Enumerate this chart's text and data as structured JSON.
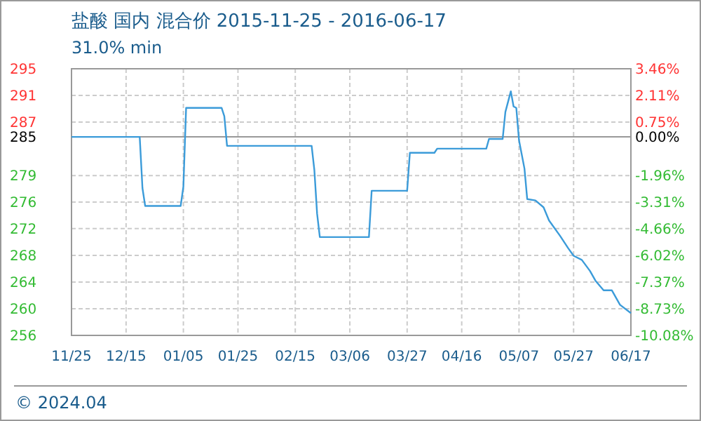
{
  "chart_data": {
    "type": "line",
    "title": "盐酸 国内 混合价 2015-11-25 - 2016-06-17",
    "subtitle": "31.0% min",
    "annotations": [
      "© 2024.04"
    ],
    "xlim": [
      "2015-11-25",
      "2016-06-17"
    ],
    "xticks": [
      {
        "value": "2015-11-25",
        "label": "11/25"
      },
      {
        "value": "2015-12-15",
        "label": "12/15"
      },
      {
        "value": "2016-01-05",
        "label": "01/05"
      },
      {
        "value": "2016-01-25",
        "label": "01/25"
      },
      {
        "value": "2016-02-15",
        "label": "02/15"
      },
      {
        "value": "2016-03-06",
        "label": "03/06"
      },
      {
        "value": "2016-03-27",
        "label": "03/27"
      },
      {
        "value": "2016-04-16",
        "label": "04/16"
      },
      {
        "value": "2016-05-07",
        "label": "05/07"
      },
      {
        "value": "2016-05-27",
        "label": "05/27"
      },
      {
        "value": "2016-06-17",
        "label": "06/17"
      }
    ],
    "ylim": [
      256.27,
      294.86
    ],
    "yticks": [
      {
        "value": 256.27,
        "label": "256"
      },
      {
        "value": 260.12,
        "label": "260"
      },
      {
        "value": 264.0,
        "label": "264"
      },
      {
        "value": 267.84,
        "label": "268"
      },
      {
        "value": 271.72,
        "label": "272"
      },
      {
        "value": 275.57,
        "label": "276"
      },
      {
        "value": 279.41,
        "label": "279"
      },
      {
        "value": 285,
        "label": "285"
      },
      {
        "value": 287.14,
        "label": "287"
      },
      {
        "value": 291.01,
        "label": "291"
      },
      {
        "value": 294.86,
        "label": "295"
      }
    ],
    "y2lim": [
      -10.08,
      3.46
    ],
    "y2ticks": [
      {
        "value": -10.08,
        "label": "-10.08%"
      },
      {
        "value": -8.73,
        "label": "-8.73%"
      },
      {
        "value": -7.37,
        "label": "-7.37%"
      },
      {
        "value": -6.02,
        "label": "-6.02%"
      },
      {
        "value": -4.66,
        "label": "-4.66%"
      },
      {
        "value": -3.31,
        "label": "-3.31%"
      },
      {
        "value": -1.96,
        "label": "-1.96%"
      },
      {
        "value": 0,
        "label": "0.00%"
      },
      {
        "value": 0.75,
        "label": "0.75%"
      },
      {
        "value": 2.11,
        "label": "2.11%"
      },
      {
        "value": 3.46,
        "label": "3.46%"
      }
    ],
    "ref_lines": [
      {
        "axis": "y",
        "value": 285,
        "color": "#999999"
      }
    ],
    "grid": true,
    "line_style": "solid",
    "marker": "none",
    "series": [
      {
        "color": "#3b9bd9",
        "x": [
          "2015-11-25",
          "2015-12-20",
          "2015-12-21",
          "2015-12-22",
          "2016-01-04",
          "2016-01-05",
          "2016-01-06",
          "2016-01-19",
          "2016-01-20",
          "2016-01-21",
          "2016-02-21",
          "2016-02-22",
          "2016-02-23",
          "2016-02-24",
          "2016-03-13",
          "2016-03-14",
          "2016-03-27",
          "2016-03-28",
          "2016-04-06",
          "2016-04-07",
          "2016-04-25",
          "2016-04-26",
          "2016-05-01",
          "2016-05-02",
          "2016-05-04",
          "2016-05-05",
          "2016-05-06",
          "2016-05-07",
          "2016-05-09",
          "2016-05-10",
          "2016-05-13",
          "2016-05-16",
          "2016-05-18",
          "2016-05-22",
          "2016-05-25",
          "2016-05-27",
          "2016-05-30",
          "2016-06-02",
          "2016-06-04",
          "2016-06-07",
          "2016-06-10",
          "2016-06-13",
          "2016-06-17"
        ],
        "values": [
          285.0,
          285.0,
          277.6,
          275.0,
          275.0,
          277.8,
          289.2,
          289.2,
          288.0,
          283.7,
          283.7,
          280.2,
          273.9,
          270.5,
          270.5,
          277.2,
          277.2,
          282.7,
          282.7,
          283.3,
          283.3,
          284.7,
          284.7,
          288.6,
          291.6,
          289.4,
          289.2,
          284.5,
          280.4,
          276.0,
          275.8,
          274.8,
          272.9,
          270.7,
          268.9,
          267.8,
          267.2,
          265.6,
          264.2,
          262.8,
          262.8,
          260.7,
          259.5
        ]
      }
    ]
  }
}
